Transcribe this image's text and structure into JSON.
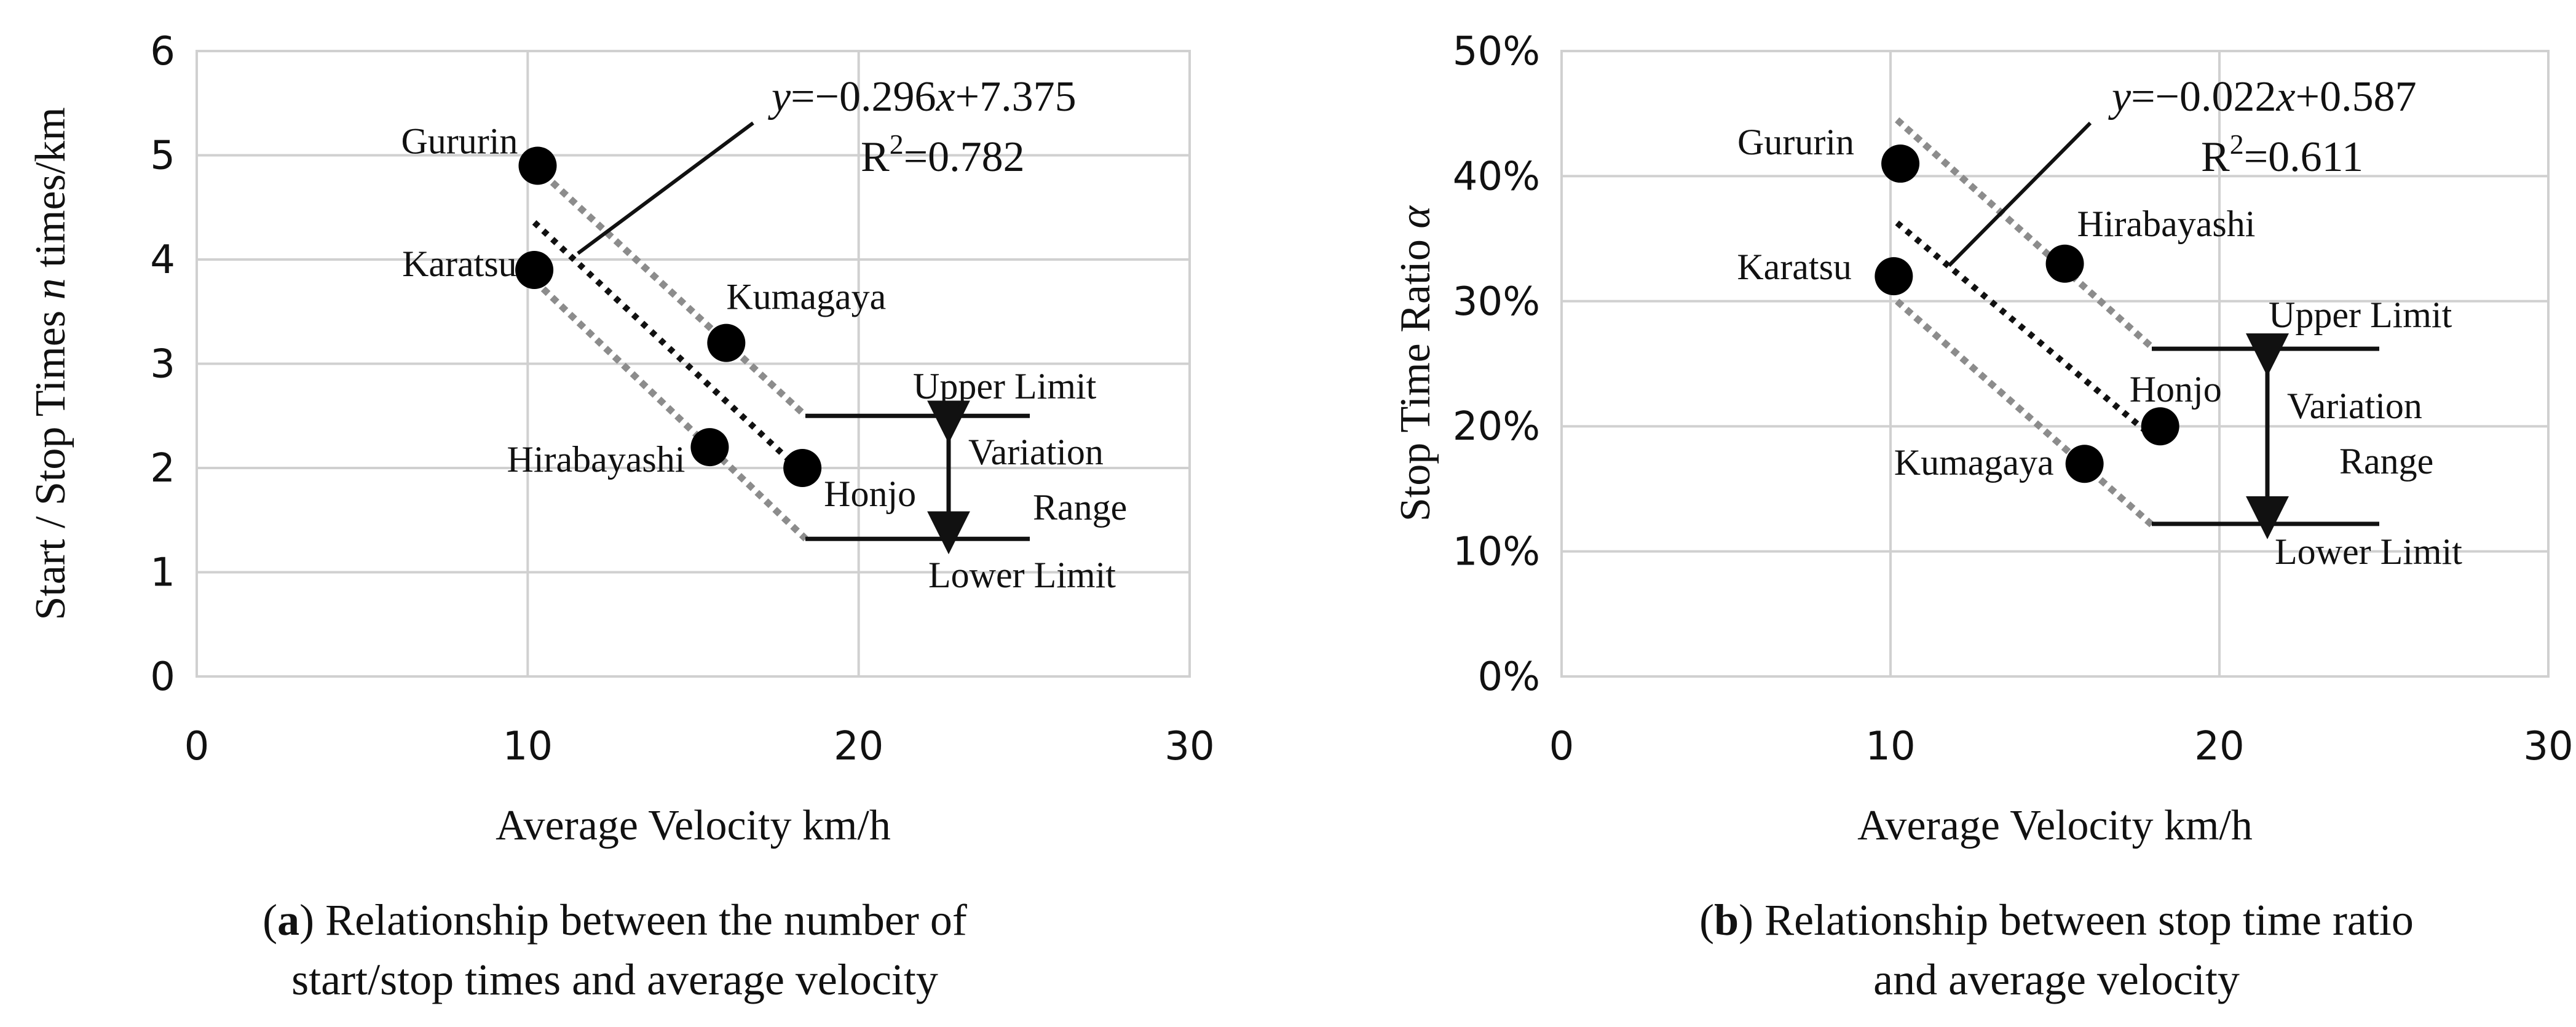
{
  "chart_data": [
    {
      "type": "scatter",
      "panel_letter": "a",
      "caption_parts": [
        "(",
        "a",
        ") Relationship between the number of"
      ],
      "caption_line2": "start/stop times and average velocity",
      "xlabel": "Average Velocity  km/h",
      "ylabel_pre": "Start / Stop Times ",
      "ylabel_symbol": "n",
      "ylabel_post": " times/km",
      "xlim": [
        0,
        30
      ],
      "ylim": [
        0,
        6
      ],
      "xticks": [
        0,
        10,
        20,
        30
      ],
      "yticks": [
        0,
        1,
        2,
        3,
        4,
        5,
        6
      ],
      "ytick_labels": [
        "0",
        "1",
        "2",
        "3",
        "4",
        "5",
        "6"
      ],
      "grid": "horizontal",
      "points": [
        {
          "name": "Gururin",
          "x": 10.3,
          "y": 4.9
        },
        {
          "name": "Karatsu",
          "x": 10.2,
          "y": 3.9
        },
        {
          "name": "Kumagaya",
          "x": 16.0,
          "y": 3.2
        },
        {
          "name": "Hirabayashi",
          "x": 15.5,
          "y": 2.2
        },
        {
          "name": "Honjo",
          "x": 18.3,
          "y": 2.0
        }
      ],
      "trend": {
        "slope": -0.296,
        "intercept": 7.375,
        "x_range": [
          10.2,
          18.3
        ]
      },
      "upper_band": {
        "x1": 10.2,
        "y1": 4.9,
        "x2": 18.4,
        "y2": 2.5
      },
      "lower_band": {
        "x1": 10.2,
        "y1": 3.8,
        "x2": 18.4,
        "y2": 1.32
      },
      "equation": {
        "y": "y",
        "rest1": "=−0.296",
        "x": "x",
        "rest2": "+7.375",
        "r2_pre": "R",
        "r2_sup": "2",
        "r2_post": "=0.782"
      },
      "limits": {
        "upper": "Upper Limit",
        "lower": "Lower Limit",
        "range1": "Variation",
        "range2": "Range"
      },
      "upper_limit_value": 2.5,
      "lower_limit_value": 1.32
    },
    {
      "type": "scatter",
      "panel_letter": "b",
      "caption_parts": [
        "(",
        "b",
        ") Relationship between stop time ratio"
      ],
      "caption_line2": "and average velocity",
      "xlabel": "Average Velocity  km/h",
      "ylabel_pre": "Stop Time Ratio ",
      "ylabel_symbol": "α",
      "ylabel_post": "",
      "xlim": [
        0,
        30
      ],
      "ylim": [
        0,
        0.5
      ],
      "xticks": [
        0,
        10,
        20,
        30
      ],
      "yticks": [
        0,
        0.1,
        0.2,
        0.3,
        0.4,
        0.5
      ],
      "ytick_labels": [
        "0%",
        "10%",
        "20%",
        "30%",
        "40%",
        "50%"
      ],
      "grid": "horizontal",
      "points": [
        {
          "name": "Gururin",
          "x": 10.3,
          "y": 0.41
        },
        {
          "name": "Karatsu",
          "x": 10.1,
          "y": 0.32
        },
        {
          "name": "Hirabayashi",
          "x": 15.3,
          "y": 0.33
        },
        {
          "name": "Honjo",
          "x": 18.2,
          "y": 0.2
        },
        {
          "name": "Kumagaya",
          "x": 15.9,
          "y": 0.17
        }
      ],
      "trend": {
        "slope": -0.022,
        "intercept": 0.587,
        "x_range": [
          10.2,
          18.2
        ]
      },
      "upper_band": {
        "x1": 10.2,
        "y1": 0.445,
        "x2": 18.0,
        "y2": 0.262
      },
      "lower_band": {
        "x1": 10.2,
        "y1": 0.3,
        "x2": 18.0,
        "y2": 0.12
      },
      "equation": {
        "y": "y",
        "rest1": "=−0.022",
        "x": "x",
        "rest2": "+0.587",
        "r2_pre": "R",
        "r2_sup": "2",
        "r2_post": "=0.611"
      },
      "limits": {
        "upper": "Upper Limit",
        "lower": "Lower Limit",
        "range1": "Variation",
        "range2": "Range"
      },
      "upper_limit_value": 0.262,
      "lower_limit_value": 0.122
    }
  ]
}
